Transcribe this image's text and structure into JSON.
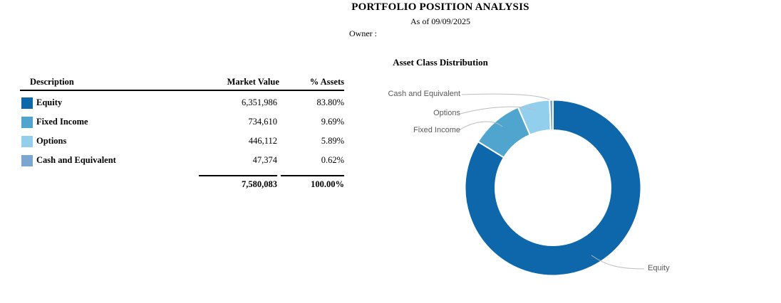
{
  "header": {
    "title": "PORTFOLIO POSITION ANALYSIS",
    "as_of": "As of 09/09/2025",
    "owner_label": "Owner :"
  },
  "table": {
    "columns": [
      "Description",
      "Market Value",
      "% Assets"
    ],
    "rows": [
      {
        "label": "Equity",
        "market_value": "6,351,986",
        "pct_assets": "83.80%",
        "color": "#0E67AB"
      },
      {
        "label": "Fixed Income",
        "market_value": "734,610",
        "pct_assets": "9.69%",
        "color": "#4FA5CD"
      },
      {
        "label": "Options",
        "market_value": "446,112",
        "pct_assets": "5.89%",
        "color": "#92CFEC"
      },
      {
        "label": "Cash and Equivalent",
        "market_value": "47,374",
        "pct_assets": "0.62%",
        "color": "#7AA6CF"
      }
    ],
    "total": {
      "market_value": "7,580,083",
      "pct_assets": "100.00%"
    }
  },
  "chart_data": {
    "type": "pie",
    "subtype": "donut",
    "title": "Asset Class Distribution",
    "categories": [
      "Equity",
      "Fixed Income",
      "Options",
      "Cash and Equivalent"
    ],
    "values": [
      6351986,
      734610,
      446112,
      47374
    ],
    "percents": [
      83.8,
      9.69,
      5.89,
      0.62
    ],
    "colors": [
      "#0E67AB",
      "#4FA5CD",
      "#92CFEC",
      "#7AA6CF"
    ],
    "legend_position": "callout-labels",
    "labels": {
      "cash": "Cash and Equivalent",
      "options": "Options",
      "fixed_income": "Fixed Income",
      "equity": "Equity"
    }
  }
}
